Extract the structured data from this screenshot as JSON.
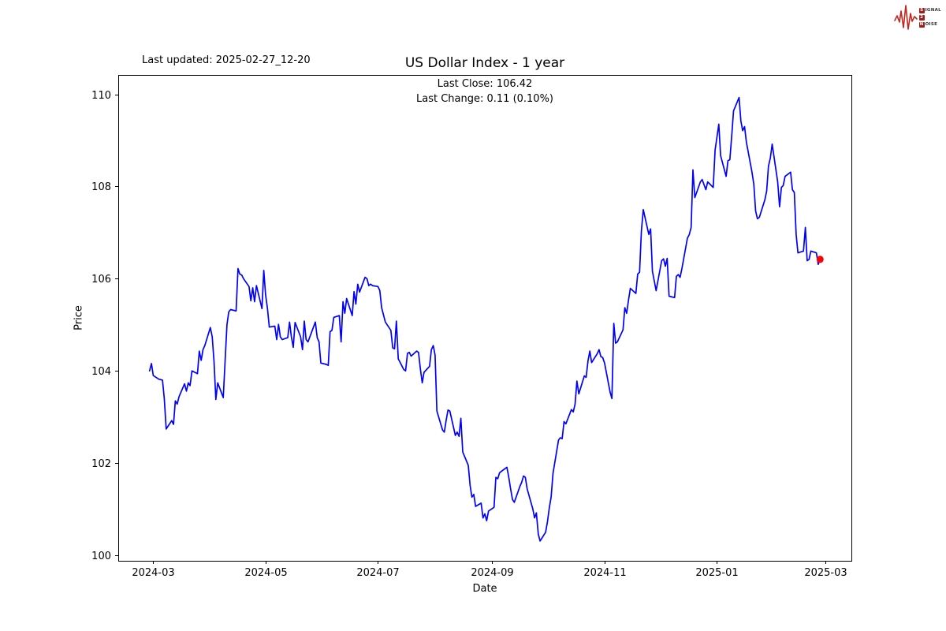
{
  "header": {
    "last_updated": "Last updated: 2025-02-27_12-20"
  },
  "logo": {
    "line1_boxed": "S",
    "line1_rest": "IGNAL",
    "line2_boxed": "2",
    "line3_boxed": "N",
    "line3_rest": "OISE",
    "waveform_color": "#c3261f"
  },
  "chart_data": {
    "type": "line",
    "title": "US Dollar Index - 1 year",
    "xlabel": "Date",
    "ylabel": "Price",
    "annotation": {
      "line1": "Last Close: 106.42",
      "line2": "Last Change: 0.11 (0.10%)"
    },
    "last_close": 106.42,
    "last_change": "0.11 (0.10%)",
    "x_ticks": [
      "2024-03",
      "2024-05",
      "2024-07",
      "2024-09",
      "2024-11",
      "2025-01",
      "2025-03"
    ],
    "y_ticks": [
      100,
      102,
      104,
      106,
      108,
      110
    ],
    "xlim": [
      "2024-02-11",
      "2025-03-15"
    ],
    "ylim": [
      99.88,
      110.42
    ],
    "grid": false,
    "legend": "none",
    "line_color": "#0000ff",
    "marker_color": "#ff0000",
    "series": [
      {
        "name": "US Dollar Index",
        "points": [
          [
            "2024-02-28",
            104.0
          ],
          [
            "2024-02-29",
            104.16
          ],
          [
            "2024-03-01",
            103.9
          ],
          [
            "2024-03-04",
            103.82
          ],
          [
            "2024-03-06",
            103.8
          ],
          [
            "2024-03-07",
            103.4
          ],
          [
            "2024-03-08",
            102.74
          ],
          [
            "2024-03-11",
            102.92
          ],
          [
            "2024-03-12",
            102.84
          ],
          [
            "2024-03-13",
            103.35
          ],
          [
            "2024-03-14",
            103.28
          ],
          [
            "2024-03-15",
            103.44
          ],
          [
            "2024-03-18",
            103.72
          ],
          [
            "2024-03-19",
            103.56
          ],
          [
            "2024-03-20",
            103.74
          ],
          [
            "2024-03-21",
            103.68
          ],
          [
            "2024-03-22",
            104.0
          ],
          [
            "2024-03-25",
            103.94
          ],
          [
            "2024-03-26",
            104.43
          ],
          [
            "2024-03-27",
            104.23
          ],
          [
            "2024-03-28",
            104.46
          ],
          [
            "2024-03-29",
            104.55
          ],
          [
            "2024-04-01",
            104.94
          ],
          [
            "2024-04-02",
            104.74
          ],
          [
            "2024-04-03",
            104.2
          ],
          [
            "2024-04-04",
            103.38
          ],
          [
            "2024-04-05",
            103.74
          ],
          [
            "2024-04-08",
            103.42
          ],
          [
            "2024-04-09",
            104.2
          ],
          [
            "2024-04-10",
            105.0
          ],
          [
            "2024-04-11",
            105.28
          ],
          [
            "2024-04-12",
            105.33
          ],
          [
            "2024-04-15",
            105.3
          ],
          [
            "2024-04-16",
            106.22
          ],
          [
            "2024-04-17",
            106.1
          ],
          [
            "2024-04-18",
            106.08
          ],
          [
            "2024-04-19",
            106.0
          ],
          [
            "2024-04-22",
            105.83
          ],
          [
            "2024-04-23",
            105.52
          ],
          [
            "2024-04-24",
            105.8
          ],
          [
            "2024-04-25",
            105.5
          ],
          [
            "2024-04-26",
            105.85
          ],
          [
            "2024-04-29",
            105.35
          ],
          [
            "2024-04-30",
            106.18
          ],
          [
            "2024-05-01",
            105.65
          ],
          [
            "2024-05-02",
            105.35
          ],
          [
            "2024-05-03",
            104.95
          ],
          [
            "2024-05-06",
            104.97
          ],
          [
            "2024-05-07",
            104.68
          ],
          [
            "2024-05-08",
            105.01
          ],
          [
            "2024-05-09",
            104.74
          ],
          [
            "2024-05-10",
            104.68
          ],
          [
            "2024-05-13",
            104.72
          ],
          [
            "2024-05-14",
            105.06
          ],
          [
            "2024-05-15",
            104.74
          ],
          [
            "2024-05-16",
            104.51
          ],
          [
            "2024-05-17",
            105.05
          ],
          [
            "2024-05-20",
            104.74
          ],
          [
            "2024-05-21",
            104.46
          ],
          [
            "2024-05-22",
            105.08
          ],
          [
            "2024-05-23",
            104.68
          ],
          [
            "2024-05-24",
            104.63
          ],
          [
            "2024-05-28",
            105.06
          ],
          [
            "2024-05-29",
            104.72
          ],
          [
            "2024-05-30",
            104.63
          ],
          [
            "2024-05-31",
            104.17
          ],
          [
            "2024-06-03",
            104.14
          ],
          [
            "2024-06-04",
            104.12
          ],
          [
            "2024-06-05",
            104.85
          ],
          [
            "2024-06-06",
            104.88
          ],
          [
            "2024-06-07",
            105.16
          ],
          [
            "2024-06-10",
            105.2
          ],
          [
            "2024-06-11",
            104.63
          ],
          [
            "2024-06-12",
            105.5
          ],
          [
            "2024-06-13",
            105.25
          ],
          [
            "2024-06-14",
            105.57
          ],
          [
            "2024-06-17",
            105.2
          ],
          [
            "2024-06-18",
            105.72
          ],
          [
            "2024-06-19",
            105.45
          ],
          [
            "2024-06-20",
            105.88
          ],
          [
            "2024-06-21",
            105.71
          ],
          [
            "2024-06-24",
            106.03
          ],
          [
            "2024-06-25",
            106.0
          ],
          [
            "2024-06-26",
            105.85
          ],
          [
            "2024-06-27",
            105.88
          ],
          [
            "2024-06-28",
            105.85
          ],
          [
            "2024-07-01",
            105.83
          ],
          [
            "2024-07-02",
            105.74
          ],
          [
            "2024-07-03",
            105.37
          ],
          [
            "2024-07-05",
            105.06
          ],
          [
            "2024-07-08",
            104.88
          ],
          [
            "2024-07-09",
            104.5
          ],
          [
            "2024-07-10",
            104.48
          ],
          [
            "2024-07-11",
            105.08
          ],
          [
            "2024-07-12",
            104.26
          ],
          [
            "2024-07-15",
            104.03
          ],
          [
            "2024-07-16",
            104.0
          ],
          [
            "2024-07-17",
            104.38
          ],
          [
            "2024-07-18",
            104.4
          ],
          [
            "2024-07-19",
            104.32
          ],
          [
            "2024-07-22",
            104.43
          ],
          [
            "2024-07-23",
            104.4
          ],
          [
            "2024-07-24",
            104.05
          ],
          [
            "2024-07-25",
            103.74
          ],
          [
            "2024-07-26",
            103.97
          ],
          [
            "2024-07-29",
            104.1
          ],
          [
            "2024-07-30",
            104.46
          ],
          [
            "2024-07-31",
            104.55
          ],
          [
            "2024-08-01",
            104.34
          ],
          [
            "2024-08-02",
            103.13
          ],
          [
            "2024-08-05",
            102.72
          ],
          [
            "2024-08-06",
            102.67
          ],
          [
            "2024-08-07",
            102.92
          ],
          [
            "2024-08-08",
            103.15
          ],
          [
            "2024-08-09",
            103.13
          ],
          [
            "2024-08-12",
            102.6
          ],
          [
            "2024-08-13",
            102.67
          ],
          [
            "2024-08-14",
            102.58
          ],
          [
            "2024-08-15",
            102.97
          ],
          [
            "2024-08-16",
            102.24
          ],
          [
            "2024-08-19",
            101.95
          ],
          [
            "2024-08-20",
            101.52
          ],
          [
            "2024-08-21",
            101.26
          ],
          [
            "2024-08-22",
            101.32
          ],
          [
            "2024-08-23",
            101.06
          ],
          [
            "2024-08-26",
            101.13
          ],
          [
            "2024-08-27",
            100.81
          ],
          [
            "2024-08-28",
            100.9
          ],
          [
            "2024-08-29",
            100.75
          ],
          [
            "2024-08-30",
            100.96
          ],
          [
            "2024-09-02",
            101.04
          ],
          [
            "2024-09-03",
            101.69
          ],
          [
            "2024-09-04",
            101.66
          ],
          [
            "2024-09-05",
            101.79
          ],
          [
            "2024-09-06",
            101.82
          ],
          [
            "2024-09-09",
            101.91
          ],
          [
            "2024-09-10",
            101.69
          ],
          [
            "2024-09-11",
            101.44
          ],
          [
            "2024-09-12",
            101.21
          ],
          [
            "2024-09-13",
            101.15
          ],
          [
            "2024-09-16",
            101.49
          ],
          [
            "2024-09-17",
            101.58
          ],
          [
            "2024-09-18",
            101.72
          ],
          [
            "2024-09-19",
            101.69
          ],
          [
            "2024-09-20",
            101.44
          ],
          [
            "2024-09-23",
            101.01
          ],
          [
            "2024-09-24",
            100.81
          ],
          [
            "2024-09-25",
            100.92
          ],
          [
            "2024-09-26",
            100.46
          ],
          [
            "2024-09-27",
            100.31
          ],
          [
            "2024-09-30",
            100.5
          ],
          [
            "2024-10-01",
            100.72
          ],
          [
            "2024-10-02",
            101.03
          ],
          [
            "2024-10-03",
            101.26
          ],
          [
            "2024-10-04",
            101.78
          ],
          [
            "2024-10-07",
            102.5
          ],
          [
            "2024-10-08",
            102.55
          ],
          [
            "2024-10-09",
            102.53
          ],
          [
            "2024-10-10",
            102.9
          ],
          [
            "2024-10-11",
            102.85
          ],
          [
            "2024-10-14",
            103.16
          ],
          [
            "2024-10-15",
            103.11
          ],
          [
            "2024-10-16",
            103.28
          ],
          [
            "2024-10-17",
            103.78
          ],
          [
            "2024-10-18",
            103.5
          ],
          [
            "2024-10-21",
            103.89
          ],
          [
            "2024-10-22",
            103.86
          ],
          [
            "2024-10-23",
            104.22
          ],
          [
            "2024-10-24",
            104.43
          ],
          [
            "2024-10-25",
            104.18
          ],
          [
            "2024-10-28",
            104.37
          ],
          [
            "2024-10-29",
            104.46
          ],
          [
            "2024-10-30",
            104.31
          ],
          [
            "2024-10-31",
            104.29
          ],
          [
            "2024-11-01",
            104.17
          ],
          [
            "2024-11-04",
            103.54
          ],
          [
            "2024-11-05",
            103.4
          ],
          [
            "2024-11-06",
            105.03
          ],
          [
            "2024-11-07",
            104.6
          ],
          [
            "2024-11-08",
            104.63
          ],
          [
            "2024-11-11",
            104.89
          ],
          [
            "2024-11-12",
            105.37
          ],
          [
            "2024-11-13",
            105.25
          ],
          [
            "2024-11-14",
            105.54
          ],
          [
            "2024-11-15",
            105.79
          ],
          [
            "2024-11-18",
            105.68
          ],
          [
            "2024-11-19",
            106.1
          ],
          [
            "2024-11-20",
            106.14
          ],
          [
            "2024-11-21",
            107.03
          ],
          [
            "2024-11-22",
            107.5
          ],
          [
            "2024-11-25",
            106.96
          ],
          [
            "2024-11-26",
            107.08
          ],
          [
            "2024-11-27",
            106.16
          ],
          [
            "2024-11-29",
            105.74
          ],
          [
            "2024-12-02",
            106.39
          ],
          [
            "2024-12-03",
            106.43
          ],
          [
            "2024-12-04",
            106.27
          ],
          [
            "2024-12-05",
            106.44
          ],
          [
            "2024-12-06",
            105.62
          ],
          [
            "2024-12-09",
            105.59
          ],
          [
            "2024-12-10",
            106.05
          ],
          [
            "2024-12-11",
            106.09
          ],
          [
            "2024-12-12",
            106.03
          ],
          [
            "2024-12-13",
            106.22
          ],
          [
            "2024-12-16",
            106.88
          ],
          [
            "2024-12-17",
            106.96
          ],
          [
            "2024-12-18",
            107.11
          ],
          [
            "2024-12-19",
            108.36
          ],
          [
            "2024-12-20",
            107.76
          ],
          [
            "2024-12-23",
            108.1
          ],
          [
            "2024-12-24",
            108.15
          ],
          [
            "2024-12-26",
            107.93
          ],
          [
            "2024-12-27",
            108.1
          ],
          [
            "2024-12-30",
            107.98
          ],
          [
            "2024-12-31",
            108.79
          ],
          [
            "2025-01-02",
            109.35
          ],
          [
            "2025-01-03",
            108.67
          ],
          [
            "2025-01-06",
            108.22
          ],
          [
            "2025-01-07",
            108.56
          ],
          [
            "2025-01-08",
            108.58
          ],
          [
            "2025-01-09",
            109.08
          ],
          [
            "2025-01-10",
            109.64
          ],
          [
            "2025-01-13",
            109.93
          ],
          [
            "2025-01-14",
            109.42
          ],
          [
            "2025-01-15",
            109.21
          ],
          [
            "2025-01-16",
            109.3
          ],
          [
            "2025-01-17",
            108.96
          ],
          [
            "2025-01-20",
            108.32
          ],
          [
            "2025-01-21",
            108.05
          ],
          [
            "2025-01-22",
            107.47
          ],
          [
            "2025-01-23",
            107.3
          ],
          [
            "2025-01-24",
            107.33
          ],
          [
            "2025-01-27",
            107.71
          ],
          [
            "2025-01-28",
            107.9
          ],
          [
            "2025-01-29",
            108.44
          ],
          [
            "2025-01-30",
            108.62
          ],
          [
            "2025-01-31",
            108.92
          ],
          [
            "2025-02-03",
            108.1
          ],
          [
            "2025-02-04",
            107.56
          ],
          [
            "2025-02-05",
            107.98
          ],
          [
            "2025-02-06",
            108.02
          ],
          [
            "2025-02-07",
            108.22
          ],
          [
            "2025-02-10",
            108.31
          ],
          [
            "2025-02-11",
            107.93
          ],
          [
            "2025-02-12",
            107.87
          ],
          [
            "2025-02-13",
            106.96
          ],
          [
            "2025-02-14",
            106.56
          ],
          [
            "2025-02-17",
            106.6
          ],
          [
            "2025-02-18",
            107.11
          ],
          [
            "2025-02-19",
            106.39
          ],
          [
            "2025-02-20",
            106.42
          ],
          [
            "2025-02-21",
            106.6
          ],
          [
            "2025-02-24",
            106.56
          ],
          [
            "2025-02-25",
            106.31
          ],
          [
            "2025-02-26",
            106.42
          ]
        ]
      }
    ]
  }
}
